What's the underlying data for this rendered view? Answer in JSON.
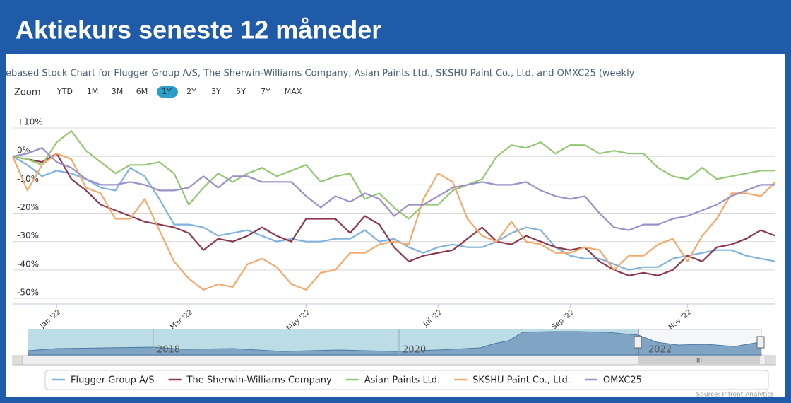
{
  "chart_data": {
    "type": "line",
    "title": "Aktiekurs seneste 12 måneder",
    "subtitle": "ebased Stock Chart for Flugger Group A/S, The Sherwin-Williams Company, Asian Paints Ltd., SKSHU Paint Co., Ltd. and OMXC25 (weekly",
    "zoom_label": "Zoom",
    "zoom_buttons": [
      "YTD",
      "1M",
      "3M",
      "6M",
      "1Y",
      "2Y",
      "3Y",
      "5Y",
      "7Y",
      "MAX"
    ],
    "zoom_active": "1Y",
    "navigator_labels": [
      "2018",
      "2020",
      "2022"
    ],
    "scrollbar_label": "III",
    "source": "Source: Infront Analytics",
    "grid": true,
    "ylim": [
      -52,
      14
    ],
    "yticks": [
      {
        "value": 10,
        "label": "+10%"
      },
      {
        "value": 0,
        "label": "0%"
      },
      {
        "value": -10,
        "label": "-10%"
      },
      {
        "value": -20,
        "label": "-20%"
      },
      {
        "value": -30,
        "label": "-30%"
      },
      {
        "value": -40,
        "label": "-40%"
      },
      {
        "value": -50,
        "label": "-50%"
      }
    ],
    "categories": [
      null,
      null,
      null,
      "Jan '22",
      null,
      null,
      null,
      null,
      null,
      null,
      null,
      null,
      "Mar '22",
      null,
      null,
      null,
      null,
      null,
      null,
      null,
      "May '22",
      null,
      null,
      null,
      null,
      null,
      null,
      null,
      null,
      "Jul '22",
      null,
      null,
      null,
      null,
      null,
      null,
      null,
      null,
      "Sep '22",
      null,
      null,
      null,
      null,
      null,
      null,
      null,
      "Nov '22",
      null,
      null,
      null,
      null,
      null,
      null
    ],
    "series": [
      {
        "name": "Flugger Group A/S",
        "color": "#7fb2dc",
        "values": [
          0,
          -3,
          -7,
          -5,
          -6,
          -8,
          -11,
          -12,
          -4,
          -7,
          -15,
          -24,
          -24,
          -25,
          -28,
          -27,
          -26,
          -28,
          -30,
          -29,
          -30,
          -30,
          -29,
          -29,
          -26,
          -30,
          -29,
          -32,
          -34,
          -32,
          -31,
          -32,
          -32,
          -30,
          -27,
          -25,
          -26,
          -32,
          -35,
          -36,
          -36,
          -38,
          -40,
          -39,
          -39,
          -36,
          -35,
          -34,
          -33,
          -33,
          -35,
          -36,
          -37
        ]
      },
      {
        "name": "The Sherwin-Williams Company",
        "color": "#8b3a4e",
        "values": [
          0,
          -1,
          -2,
          1,
          -8,
          -12,
          -17,
          -19,
          -21,
          -23,
          -24,
          -25,
          -27,
          -33,
          -29,
          -30,
          -28,
          -25,
          -28,
          -30,
          -22,
          -22,
          -22,
          -27,
          -21,
          -24,
          -32,
          -37,
          -35,
          -34,
          -33,
          -29,
          -25,
          -30,
          -31,
          -28,
          -30,
          -32,
          -33,
          -32,
          -37,
          -40,
          -42,
          -41,
          -42,
          -40,
          -35,
          -37,
          -32,
          -31,
          -29,
          -26,
          -28
        ]
      },
      {
        "name": "Asian Paints Ltd.",
        "color": "#95c873",
        "values": [
          0,
          -1,
          -3,
          5,
          9,
          2,
          -2,
          -6,
          -3,
          -3,
          -2,
          -6,
          -17,
          -11,
          -6,
          -9,
          -6,
          -4,
          -7,
          -5,
          -3,
          -9,
          -7,
          -6,
          -15,
          -13,
          -18,
          -22,
          -17,
          -17,
          -12,
          -10,
          -8,
          0,
          4,
          3,
          5,
          1,
          4,
          4,
          1,
          2,
          1,
          1,
          -4,
          -7,
          -8,
          -4,
          -8,
          -7,
          -6,
          -5,
          -5
        ]
      },
      {
        "name": "SKSHU Paint Co., Ltd.",
        "color": "#f5a96a",
        "values": [
          0,
          -12,
          -3,
          1,
          -1,
          -11,
          -13,
          -22,
          -22,
          -15,
          -26,
          -37,
          -43,
          -47,
          -45,
          -46,
          -38,
          -36,
          -39,
          -45,
          -47,
          -41,
          -40,
          -34,
          -34,
          -31,
          -30,
          -31,
          -15,
          -6,
          -9,
          -22,
          -28,
          -30,
          -23,
          -30,
          -31,
          -34,
          -34,
          -32,
          -33,
          -40,
          -35,
          -35,
          -31,
          -29,
          -37,
          -28,
          -22,
          -13,
          -13,
          -14,
          -9
        ]
      },
      {
        "name": "OMXC25",
        "color": "#9a8fc9",
        "values": [
          0,
          1,
          3,
          -2,
          -4,
          -8,
          -10,
          -10,
          -9,
          -10,
          -12,
          -12,
          -11,
          -7,
          -11,
          -7,
          -7,
          -9,
          -9,
          -9,
          -14,
          -18,
          -14,
          -16,
          -13,
          -15,
          -21,
          -17,
          -17,
          -14,
          -11,
          -10,
          -9,
          -10,
          -10,
          -9,
          -12,
          -14,
          -15,
          -14,
          -20,
          -25,
          -26,
          -24,
          -24,
          -22,
          -21,
          -19,
          -17,
          -14,
          -12,
          -10,
          -10
        ]
      }
    ]
  }
}
